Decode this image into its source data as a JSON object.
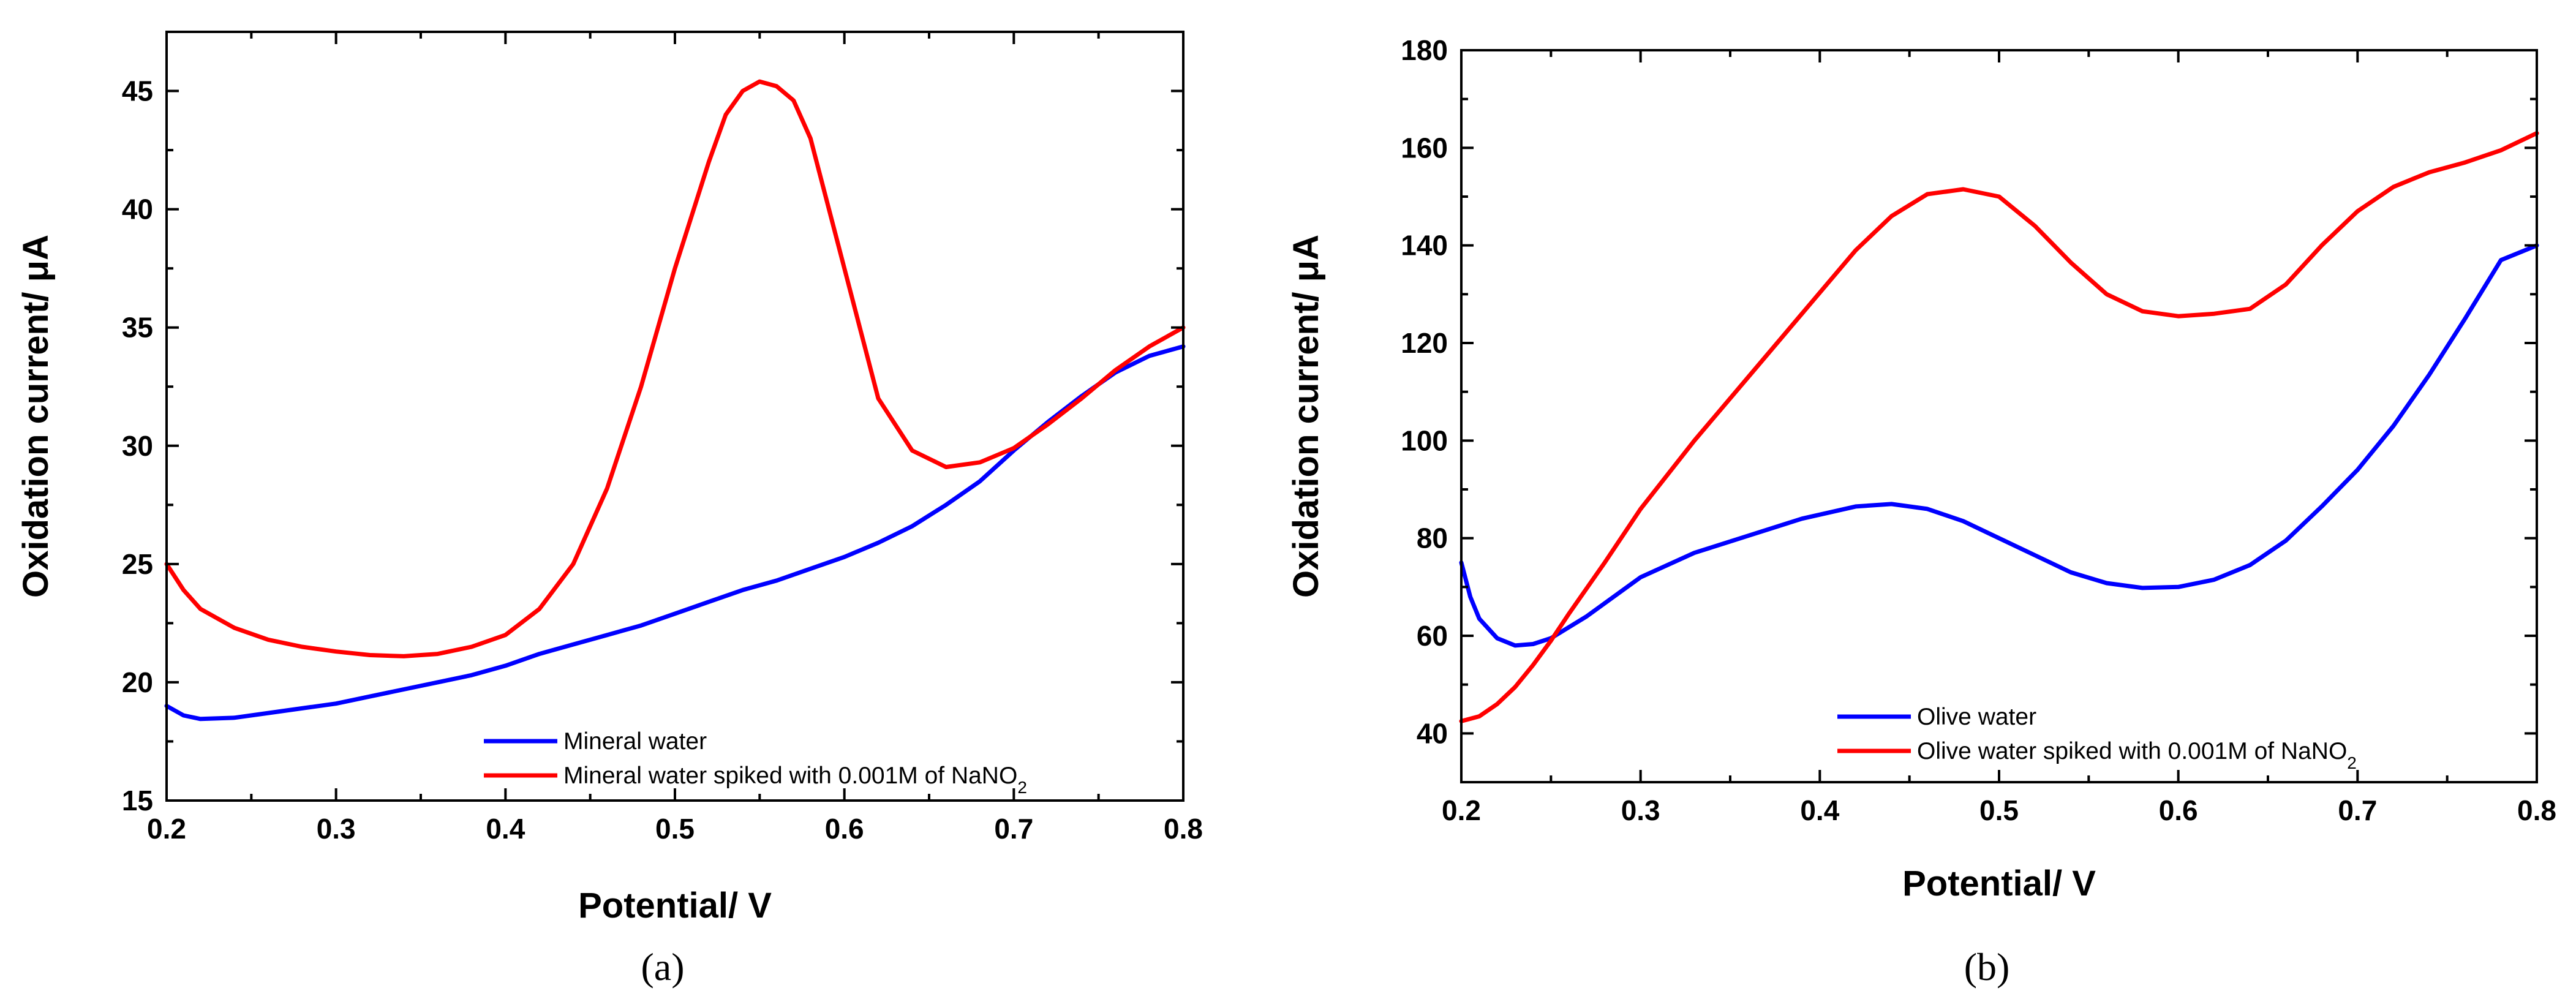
{
  "chart_data": [
    {
      "type": "line",
      "panel_label": "(a)",
      "xlabel": "Potential/ V",
      "ylabel": "Oxidation current/ μA",
      "xlim": [
        0.2,
        0.8
      ],
      "ylim": [
        15,
        47.5
      ],
      "xticks": [
        0.2,
        0.3,
        0.4,
        0.5,
        0.6,
        0.7,
        0.8
      ],
      "yticks": [
        15,
        20,
        25,
        30,
        35,
        40,
        45
      ],
      "legend_position": "bottom-right",
      "series": [
        {
          "name": "Mineral water",
          "color": "#0000ff",
          "x": [
            0.2,
            0.21,
            0.22,
            0.24,
            0.26,
            0.28,
            0.3,
            0.32,
            0.34,
            0.36,
            0.38,
            0.4,
            0.42,
            0.44,
            0.46,
            0.48,
            0.5,
            0.52,
            0.54,
            0.56,
            0.58,
            0.6,
            0.62,
            0.64,
            0.66,
            0.68,
            0.7,
            0.72,
            0.74,
            0.76,
            0.78,
            0.8
          ],
          "y": [
            19.0,
            18.6,
            18.45,
            18.5,
            18.7,
            18.9,
            19.1,
            19.4,
            19.7,
            20.0,
            20.3,
            20.7,
            21.2,
            21.6,
            22.0,
            22.4,
            22.9,
            23.4,
            23.9,
            24.3,
            24.8,
            25.3,
            25.9,
            26.6,
            27.5,
            28.5,
            29.8,
            31.0,
            32.1,
            33.1,
            33.8,
            34.2
          ]
        },
        {
          "name": "Mineral water spiked with 0.001M of NaNO",
          "name_subscript": "2",
          "color": "#ff0000",
          "x": [
            0.2,
            0.21,
            0.22,
            0.24,
            0.26,
            0.28,
            0.3,
            0.32,
            0.34,
            0.36,
            0.38,
            0.4,
            0.42,
            0.44,
            0.46,
            0.48,
            0.5,
            0.52,
            0.53,
            0.54,
            0.55,
            0.56,
            0.57,
            0.58,
            0.6,
            0.62,
            0.64,
            0.66,
            0.68,
            0.7,
            0.72,
            0.74,
            0.76,
            0.78,
            0.8
          ],
          "y": [
            25.0,
            23.9,
            23.1,
            22.3,
            21.8,
            21.5,
            21.3,
            21.15,
            21.1,
            21.2,
            21.5,
            22.0,
            23.1,
            25.0,
            28.2,
            32.5,
            37.5,
            42.0,
            44.0,
            45.0,
            45.4,
            45.2,
            44.6,
            43.0,
            37.5,
            32.0,
            29.8,
            29.1,
            29.3,
            29.9,
            30.9,
            32.0,
            33.2,
            34.2,
            35.0
          ]
        }
      ]
    },
    {
      "type": "line",
      "panel_label": "(b)",
      "xlabel": "Potential/ V",
      "ylabel": "Oxidation current/ μA",
      "xlim": [
        0.2,
        0.8
      ],
      "ylim": [
        30,
        180
      ],
      "xticks": [
        0.2,
        0.3,
        0.4,
        0.5,
        0.6,
        0.7,
        0.8
      ],
      "yticks": [
        40,
        60,
        80,
        100,
        120,
        140,
        160,
        180
      ],
      "legend_position": "bottom-right",
      "series": [
        {
          "name": "Olive water",
          "color": "#0000ff",
          "x": [
            0.2,
            0.205,
            0.21,
            0.22,
            0.23,
            0.24,
            0.25,
            0.27,
            0.3,
            0.33,
            0.36,
            0.39,
            0.42,
            0.44,
            0.46,
            0.48,
            0.5,
            0.52,
            0.54,
            0.56,
            0.58,
            0.6,
            0.62,
            0.64,
            0.66,
            0.68,
            0.7,
            0.72,
            0.74,
            0.76,
            0.78,
            0.8
          ],
          "y": [
            75,
            68,
            63.5,
            59.5,
            58,
            58.3,
            59.5,
            64,
            72,
            77,
            80.5,
            84,
            86.5,
            87,
            86,
            83.5,
            80,
            76.5,
            73,
            70.8,
            69.8,
            70,
            71.5,
            74.5,
            79.5,
            86.5,
            94,
            103,
            113.5,
            125,
            137,
            140
          ]
        },
        {
          "name": "Olive water spiked with 0.001M of NaNO",
          "name_subscript": "2",
          "color": "#ff0000",
          "x": [
            0.2,
            0.21,
            0.22,
            0.23,
            0.24,
            0.25,
            0.26,
            0.28,
            0.3,
            0.33,
            0.36,
            0.39,
            0.42,
            0.44,
            0.46,
            0.48,
            0.5,
            0.52,
            0.54,
            0.56,
            0.58,
            0.6,
            0.62,
            0.64,
            0.66,
            0.68,
            0.7,
            0.72,
            0.74,
            0.76,
            0.78,
            0.8
          ],
          "y": [
            42.5,
            43.5,
            46,
            49.5,
            54,
            59,
            64.5,
            75,
            86,
            100,
            113,
            126,
            139,
            146,
            150.5,
            151.5,
            150,
            144,
            136.5,
            130,
            126.5,
            125.5,
            126,
            127,
            132,
            140,
            147,
            152,
            155,
            157,
            159.5,
            163
          ]
        }
      ]
    }
  ]
}
